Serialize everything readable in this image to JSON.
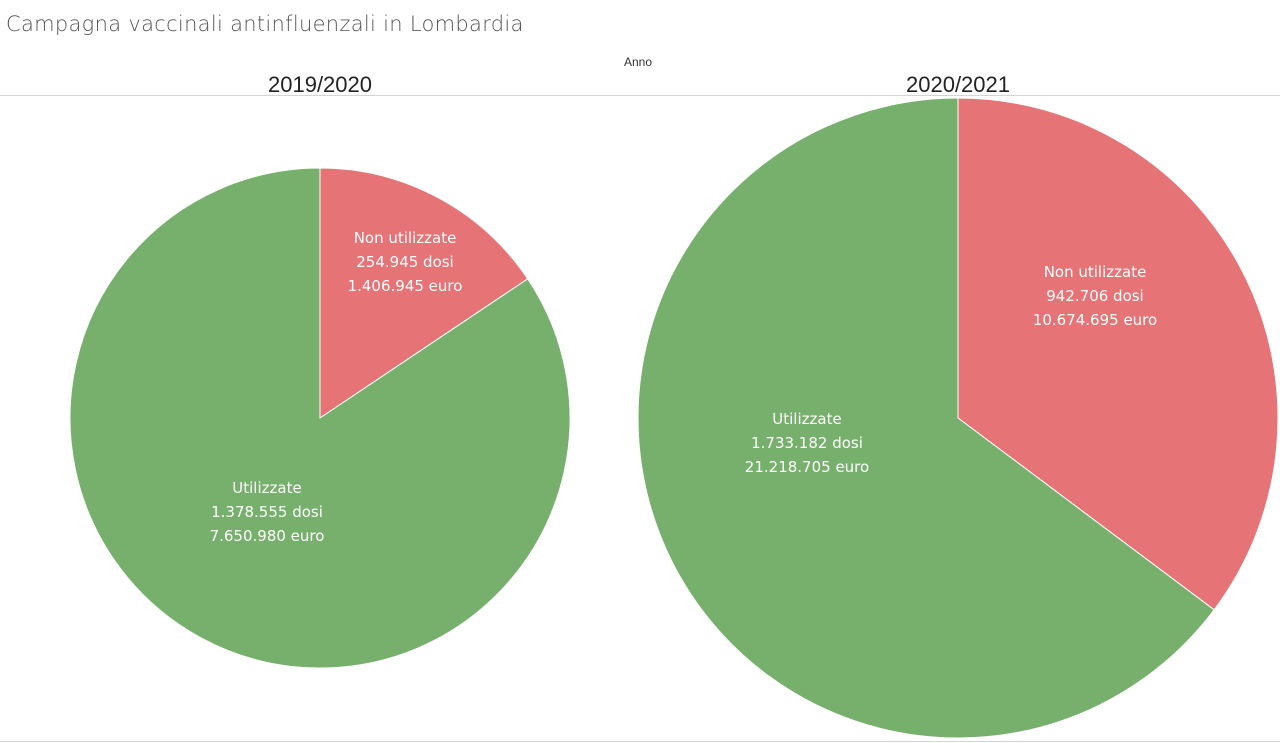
{
  "title": "Campagna vaccinali antinfluenzali in Lombardia",
  "chart_data": {
    "type": "pie",
    "header": "Anno",
    "colors": {
      "Utilizzate": "#77b06d",
      "Non utilizzate": "#e67375"
    },
    "charts": [
      {
        "year": "2019/2020",
        "slices": [
          {
            "name": "Non utilizzate",
            "dosi": 254945,
            "euro": 1406945,
            "lines": [
              "Non utilizzate",
              "254.945 dosi",
              "1.406.945  euro"
            ]
          },
          {
            "name": "Utilizzate",
            "dosi": 1378555,
            "euro": 7650980,
            "lines": [
              "Utilizzate",
              "1.378.555 dosi",
              "7.650.980  euro"
            ]
          }
        ]
      },
      {
        "year": "2020/2021",
        "slices": [
          {
            "name": "Non utilizzate",
            "dosi": 942706,
            "euro": 10674695,
            "lines": [
              "Non utilizzate",
              "942.706 dosi",
              "10.674.695  euro"
            ]
          },
          {
            "name": "Utilizzate",
            "dosi": 1733182,
            "euro": 21218705,
            "lines": [
              "Utilizzate",
              "1.733.182 dosi",
              "21.218.705  euro"
            ]
          }
        ]
      }
    ]
  }
}
